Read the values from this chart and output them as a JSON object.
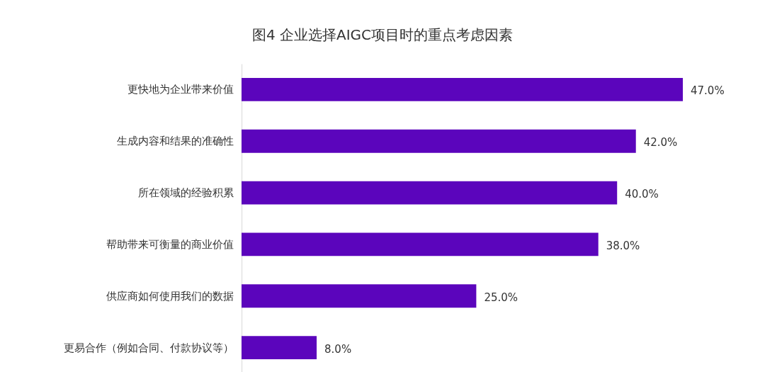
{
  "chart_data": {
    "type": "bar",
    "orientation": "horizontal",
    "title": "图4 企业选择AIGC项目时的重点考虑因素",
    "categories": [
      "更快地为企业带来价值",
      "生成内容和结果的准确性",
      "所在领域的经验积累",
      "帮助带来可衡量的商业价值",
      "供应商如何使用我们的数据",
      "更易合作（例如合同、付款协议等）"
    ],
    "values": [
      47,
      42,
      40,
      38,
      25,
      8
    ],
    "value_labels": [
      "47.0%",
      "42.0%",
      "40.0%",
      "38.0%",
      "25.0%",
      "8.0%"
    ],
    "color": "#5b05bc",
    "tick_labels": "y"
  }
}
